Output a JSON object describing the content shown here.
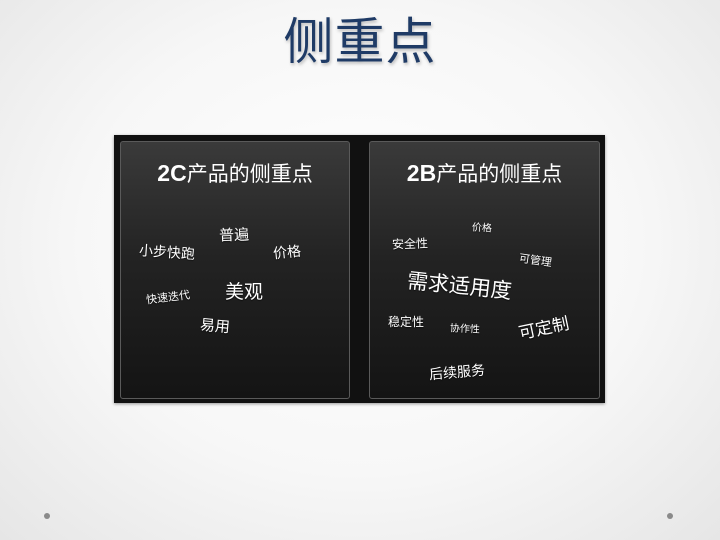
{
  "title": "侧重点",
  "panels": {
    "left": {
      "title_prefix": "2C",
      "title_rest": "产品的侧重点",
      "words": [
        "普遍",
        "小步快跑",
        "价格",
        "美观",
        "快速迭代",
        "易用"
      ]
    },
    "right": {
      "title_prefix": "2B",
      "title_rest": "产品的侧重点",
      "words": [
        "价格",
        "安全性",
        "可管理",
        "需求适用度",
        "稳定性",
        "协作性",
        "可定制",
        "后续服务"
      ]
    }
  }
}
